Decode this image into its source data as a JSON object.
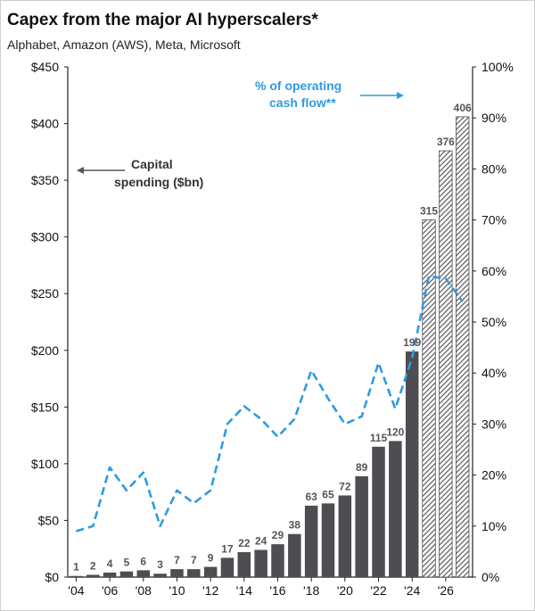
{
  "chart_data": {
    "type": "bar",
    "title": "Capex from the major AI hyperscalers*",
    "subtitle": "Alphabet, Amazon (AWS), Meta, Microsoft",
    "years": [
      2004,
      2005,
      2006,
      2007,
      2008,
      2009,
      2010,
      2011,
      2012,
      2013,
      2014,
      2015,
      2016,
      2017,
      2018,
      2019,
      2020,
      2021,
      2022,
      2023,
      2024,
      2025,
      2026,
      2027
    ],
    "x_tick_labels": [
      "'04",
      "'06",
      "'08",
      "'10",
      "'12",
      "'14",
      "'16",
      "'18",
      "'20",
      "'22",
      "'24",
      "'26"
    ],
    "x_tick_years": [
      2004,
      2006,
      2008,
      2010,
      2012,
      2014,
      2016,
      2018,
      2020,
      2022,
      2024,
      2026
    ],
    "series": [
      {
        "name": "Capital spending ($bn)",
        "axis": "left",
        "values": [
          1,
          2,
          4,
          5,
          6,
          3,
          7,
          7,
          9,
          17,
          22,
          24,
          29,
          38,
          63,
          65,
          72,
          89,
          115,
          120,
          199,
          315,
          376,
          406
        ],
        "value_labels": [
          "1",
          "2",
          "4",
          "5",
          "6",
          "3",
          "7",
          "7",
          "9",
          "17",
          "22",
          "24",
          "29",
          "38",
          "63",
          "65",
          "72",
          "89",
          "115",
          "120",
          "199",
          "315",
          "376",
          "406"
        ],
        "estimate_from_year": 2025,
        "color": "#4d4d52"
      },
      {
        "name": "% of operating cash flow**",
        "axis": "right",
        "style": "dashed",
        "color": "#2e9be0",
        "points": [
          [
            2004,
            9.0
          ],
          [
            2005,
            10.0
          ],
          [
            2006,
            21.5
          ],
          [
            2007,
            17.0
          ],
          [
            2008,
            20.5
          ],
          [
            2009,
            10.0
          ],
          [
            2010,
            17.0
          ],
          [
            2011,
            14.5
          ],
          [
            2012,
            17.0
          ],
          [
            2013,
            30.0
          ],
          [
            2014,
            33.5
          ],
          [
            2015,
            31.0
          ],
          [
            2016,
            27.5
          ],
          [
            2017,
            31.0
          ],
          [
            2018,
            40.5
          ],
          [
            2019,
            35.0
          ],
          [
            2020,
            30.0
          ],
          [
            2021,
            31.5
          ],
          [
            2022,
            42.0
          ],
          [
            2023,
            33.0
          ],
          [
            2024,
            43.0
          ],
          [
            2025,
            59.0
          ],
          [
            2026,
            58.5
          ],
          [
            2027,
            54.0
          ]
        ]
      }
    ],
    "y_left": {
      "min": 0,
      "max": 450,
      "step": 50,
      "tick_labels": [
        "$0",
        "$50",
        "$100",
        "$150",
        "$200",
        "$250",
        "$300",
        "$350",
        "$400",
        "$450"
      ]
    },
    "y_right": {
      "min": 0,
      "max": 100,
      "step": 10,
      "tick_labels": [
        "0%",
        "10%",
        "20%",
        "30%",
        "40%",
        "50%",
        "60%",
        "70%",
        "80%",
        "90%",
        "100%"
      ]
    },
    "annotations": {
      "capital_line1": "Capital",
      "capital_line2": "spending ($bn)",
      "ocf_line1": "% of operating",
      "ocf_line2": "cash flow**"
    },
    "grid": false,
    "legend": "none"
  }
}
